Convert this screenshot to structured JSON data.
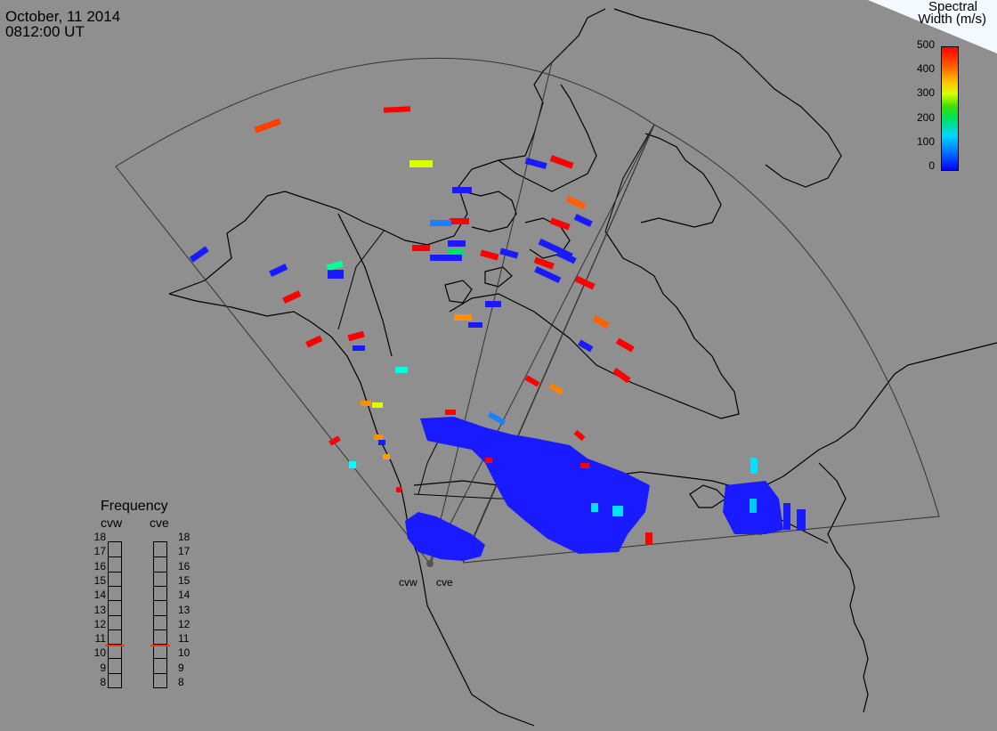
{
  "header": {
    "date": "October, 11 2014",
    "time": "0812:00 UT"
  },
  "colorbar": {
    "title_line1": "Spectral",
    "title_line2": "Width (m/s)",
    "ticks": [
      "500",
      "400",
      "300",
      "200",
      "100",
      "0"
    ],
    "colors": [
      "#0000ff",
      "#0060ff",
      "#00d8ff",
      "#00e060",
      "#40e000",
      "#d8ff00",
      "#ffc000",
      "#ff6000",
      "#ff0000"
    ]
  },
  "frequency": {
    "title": "Frequency",
    "radars": [
      {
        "name": "cvw",
        "frequency": 10.6
      },
      {
        "name": "cve",
        "frequency": 10.6
      }
    ],
    "scale": [
      "18",
      "17",
      "16",
      "15",
      "14",
      "13",
      "12",
      "11",
      "10",
      "9",
      "8"
    ],
    "marker_color": "#ff3300"
  },
  "radar_sites": {
    "west": "cvw",
    "east": "cve"
  },
  "map_style": {
    "background": "#8f8f8f",
    "land_outline": "#000000",
    "fov_outline": "#333333"
  }
}
